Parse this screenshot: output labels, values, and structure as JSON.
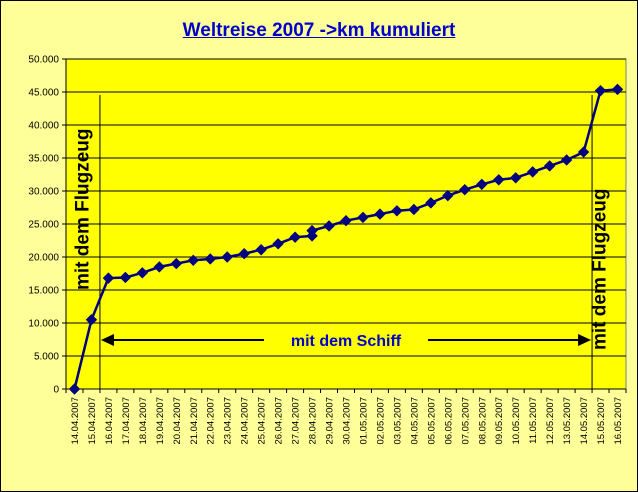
{
  "title": "Weltreise 2007 ->km kumuliert",
  "annotations": {
    "left_plane": "mit dem Flugzeug",
    "ship": "mit dem Schiff",
    "right_plane": "mit dem Flugzeug"
  },
  "colors": {
    "background": "#ffff99",
    "plot_area": "#ffff00",
    "series": "#000080",
    "title": "#0000cc",
    "annotation_text": "#000000",
    "ship_text": "#0000cc"
  },
  "chart_data": {
    "type": "line",
    "title": "Weltreise 2007 ->km kumuliert",
    "xlabel": "",
    "ylabel": "",
    "ylim": [
      0,
      50000
    ],
    "yticks": [
      "0",
      "5.000",
      "10.000",
      "15.000",
      "20.000",
      "25.000",
      "30.000",
      "35.000",
      "40.000",
      "45.000",
      "50.000"
    ],
    "grid": true,
    "legend": "none",
    "categories": [
      "14.04.2007",
      "15.04.2007",
      "16.04.2007",
      "17.04.2007",
      "18.04.2007",
      "19.04.2007",
      "20.04.2007",
      "21.04.2007",
      "22.04.2007",
      "23.04.2007",
      "24.04.2007",
      "25.04.2007",
      "26.04.2007",
      "27.04.2007",
      "28.04.2007",
      "29.04.2007",
      "30.04.2007",
      "01.05.2007",
      "02.05.2007",
      "03.05.2007",
      "04.05.2007",
      "05.05.2007",
      "06.05.2007",
      "07.05.2007",
      "08.05.2007",
      "09.05.2007",
      "10.05.2007",
      "11.05.2007",
      "12.05.2007",
      "13.05.2007",
      "14.05.2007",
      "15.05.2007",
      "16.05.2007"
    ],
    "points": [
      {
        "cat": 0,
        "value": 0
      },
      {
        "cat": 1,
        "value": 10500
      },
      {
        "cat": 2,
        "value": 16800
      },
      {
        "cat": 3,
        "value": 16900
      },
      {
        "cat": 4,
        "value": 17600
      },
      {
        "cat": 5,
        "value": 18500
      },
      {
        "cat": 6,
        "value": 19000
      },
      {
        "cat": 7,
        "value": 19500
      },
      {
        "cat": 8,
        "value": 19700
      },
      {
        "cat": 9,
        "value": 20000
      },
      {
        "cat": 10,
        "value": 20500
      },
      {
        "cat": 11,
        "value": 21100
      },
      {
        "cat": 12,
        "value": 22000
      },
      {
        "cat": 13,
        "value": 23000
      },
      {
        "cat": 14,
        "value": 23200
      },
      {
        "cat": 14,
        "value": 24000
      },
      {
        "cat": 15,
        "value": 24700
      },
      {
        "cat": 16,
        "value": 25500
      },
      {
        "cat": 17,
        "value": 26000
      },
      {
        "cat": 18,
        "value": 26500
      },
      {
        "cat": 19,
        "value": 27000
      },
      {
        "cat": 20,
        "value": 27200
      },
      {
        "cat": 21,
        "value": 28200
      },
      {
        "cat": 22,
        "value": 29300
      },
      {
        "cat": 23,
        "value": 30200
      },
      {
        "cat": 24,
        "value": 31000
      },
      {
        "cat": 25,
        "value": 31700
      },
      {
        "cat": 26,
        "value": 32000
      },
      {
        "cat": 27,
        "value": 32900
      },
      {
        "cat": 28,
        "value": 33800
      },
      {
        "cat": 29,
        "value": 34700
      },
      {
        "cat": 30,
        "value": 35900
      },
      {
        "cat": 31,
        "value": 45200
      },
      {
        "cat": 32,
        "value": 45400
      }
    ]
  }
}
